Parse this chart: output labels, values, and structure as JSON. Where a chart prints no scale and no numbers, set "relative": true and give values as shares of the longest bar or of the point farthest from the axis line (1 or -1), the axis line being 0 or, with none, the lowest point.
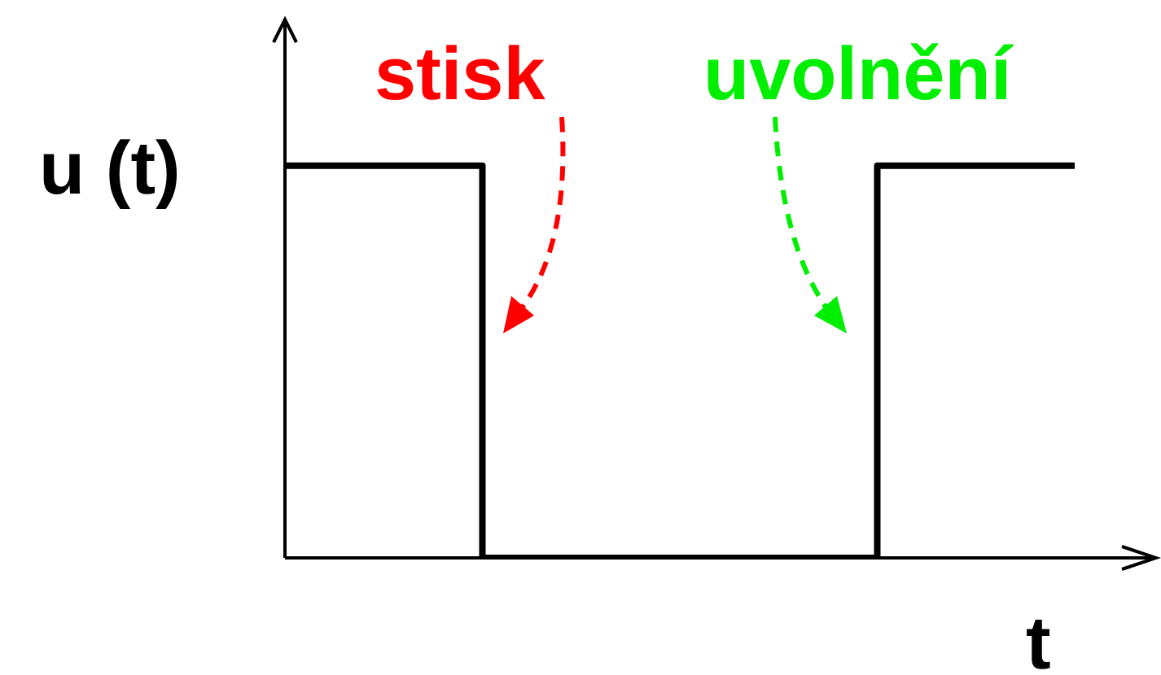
{
  "chart_data": {
    "type": "step",
    "relative": true,
    "ylabel": "u (t)",
    "xlabel": "t",
    "categories": [
      null,
      null,
      null,
      null,
      null
    ],
    "series": [
      {
        "color": "#000000",
        "values": [
          1,
          0,
          0,
          1,
          1
        ]
      }
    ],
    "annotations": [
      "stisk",
      "uvolnění"
    ],
    "legend": false,
    "marker": "none",
    "line_style": "solid"
  }
}
